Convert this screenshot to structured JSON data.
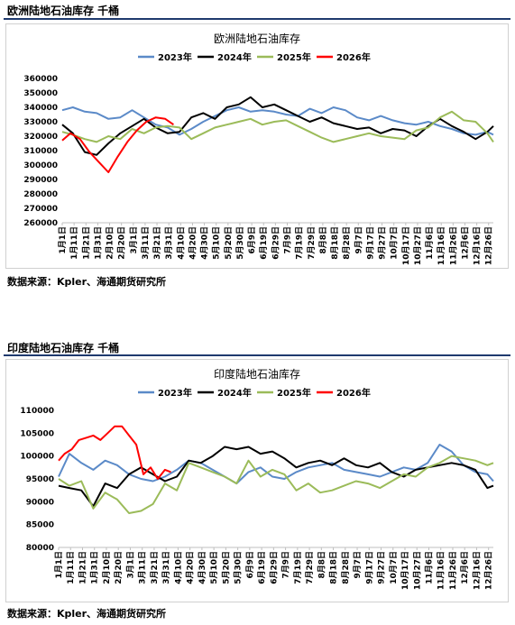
{
  "panels": [
    {
      "heading": "欧洲陆地石油库存  千桶",
      "source": "数据来源：Kpler、海通期货研究所"
    },
    {
      "heading": "印度陆地石油库存  千桶",
      "source": "数据来源：Kpler、海通期货研究所"
    }
  ],
  "chart_data": [
    {
      "type": "line",
      "title": "欧洲陆地石油库存",
      "xlabel": "",
      "ylabel": "",
      "ylim": [
        260000,
        360000
      ],
      "yticks": [
        260000,
        270000,
        280000,
        290000,
        300000,
        310000,
        320000,
        330000,
        340000,
        350000,
        360000
      ],
      "x_tick_labels": [
        "1月1日",
        "1月11日",
        "1月21日",
        "1月31日",
        "2月10日",
        "2月20日",
        "3月1日",
        "3月11日",
        "3月21日",
        "3月31日",
        "4月10日",
        "4月20日",
        "4月30日",
        "5月10日",
        "5月20日",
        "5月30日",
        "6月9日",
        "6月19日",
        "6月29日",
        "7月9日",
        "7月19日",
        "7月29日",
        "8月8日",
        "8月18日",
        "8月28日",
        "9月7日",
        "9月17日",
        "9月27日",
        "10月7日",
        "10月17日",
        "10月27日",
        "11月6日",
        "11月16日",
        "11月26日",
        "12月6日",
        "12月16日",
        "12月26日"
      ],
      "grid": false,
      "legend_position": "top",
      "series": [
        {
          "name": "2023年",
          "color": "#5b8ac8",
          "x": [
            1,
            10,
            20,
            30,
            40,
            50,
            60,
            70,
            80,
            90,
            100,
            110,
            120,
            130,
            140,
            150,
            160,
            170,
            180,
            190,
            200,
            210,
            220,
            230,
            240,
            250,
            260,
            270,
            280,
            290,
            300,
            310,
            320,
            330,
            340,
            350,
            360,
            365
          ],
          "y": [
            338000,
            340000,
            337000,
            336000,
            332000,
            333000,
            338000,
            333000,
            328000,
            326000,
            321000,
            325000,
            330000,
            334000,
            338000,
            340000,
            337000,
            338000,
            337000,
            335000,
            334000,
            339000,
            336000,
            340000,
            338000,
            333000,
            331000,
            334000,
            331000,
            329000,
            328000,
            330000,
            327000,
            325000,
            322000,
            321000,
            323000,
            321000
          ]
        },
        {
          "name": "2024年",
          "color": "#000000",
          "x": [
            1,
            10,
            20,
            30,
            40,
            50,
            60,
            70,
            80,
            90,
            100,
            110,
            120,
            130,
            140,
            150,
            160,
            170,
            180,
            190,
            200,
            210,
            220,
            230,
            240,
            250,
            260,
            270,
            280,
            290,
            300,
            310,
            320,
            330,
            340,
            350,
            360,
            365
          ],
          "y": [
            328000,
            322000,
            309000,
            307000,
            315000,
            322000,
            327000,
            332000,
            326000,
            322000,
            323000,
            333000,
            336000,
            332000,
            340000,
            342000,
            347000,
            340000,
            342000,
            338000,
            334000,
            330000,
            333000,
            329000,
            327000,
            325000,
            326000,
            322000,
            325000,
            324000,
            320000,
            327000,
            332000,
            327000,
            323000,
            318000,
            323000,
            327000
          ]
        },
        {
          "name": "2025年",
          "color": "#9bbb59",
          "x": [
            1,
            10,
            20,
            30,
            40,
            50,
            60,
            70,
            80,
            90,
            100,
            110,
            120,
            130,
            140,
            150,
            160,
            170,
            180,
            190,
            200,
            210,
            220,
            230,
            240,
            250,
            260,
            270,
            280,
            290,
            300,
            310,
            320,
            330,
            340,
            350,
            360,
            365
          ],
          "y": [
            323000,
            321000,
            318000,
            316000,
            320000,
            318000,
            325000,
            322000,
            326000,
            327000,
            326000,
            318000,
            322000,
            326000,
            328000,
            330000,
            332000,
            328000,
            330000,
            331000,
            327000,
            323000,
            319000,
            316000,
            318000,
            320000,
            322000,
            320000,
            319000,
            318000,
            324000,
            326000,
            333000,
            337000,
            331000,
            330000,
            322000,
            316000
          ]
        },
        {
          "name": "2026年",
          "color": "#ff0000",
          "x": [
            1,
            8,
            16,
            24,
            32,
            40,
            48,
            56,
            64,
            72,
            80,
            88,
            95
          ],
          "y": [
            317000,
            322000,
            318000,
            309000,
            302000,
            295000,
            306000,
            316000,
            324000,
            330000,
            333000,
            332000,
            328000
          ]
        }
      ]
    },
    {
      "type": "line",
      "title": "印度陆地石油库存",
      "xlabel": "",
      "ylabel": "",
      "ylim": [
        80000,
        110000
      ],
      "yticks": [
        80000,
        85000,
        90000,
        95000,
        100000,
        105000,
        110000
      ],
      "x_tick_labels": [
        "1月1日",
        "1月11日",
        "1月21日",
        "1月31日",
        "2月10日",
        "2月20日",
        "3月1日",
        "3月11日",
        "3月21日",
        "3月31日",
        "4月10日",
        "4月20日",
        "4月30日",
        "5月10日",
        "5月20日",
        "5月30日",
        "6月9日",
        "6月19日",
        "6月29日",
        "7月9日",
        "7月19日",
        "7月29日",
        "8月8日",
        "8月18日",
        "8月28日",
        "9月7日",
        "9月17日",
        "9月27日",
        "10月7日",
        "10月17日",
        "10月27日",
        "11月6日",
        "11月16日",
        "11月26日",
        "12月6日",
        "12月16日",
        "12月26日"
      ],
      "grid": false,
      "legend_position": "top",
      "series": [
        {
          "name": "2023年",
          "color": "#5b8ac8",
          "x": [
            1,
            10,
            20,
            30,
            40,
            50,
            60,
            70,
            80,
            90,
            100,
            110,
            120,
            130,
            140,
            150,
            160,
            170,
            180,
            190,
            200,
            210,
            220,
            230,
            240,
            250,
            260,
            270,
            280,
            290,
            300,
            310,
            320,
            330,
            340,
            350,
            360,
            365
          ],
          "y": [
            95500,
            100500,
            98500,
            97000,
            99000,
            98000,
            96000,
            95000,
            94500,
            95500,
            97000,
            99000,
            98500,
            97000,
            95500,
            94000,
            96500,
            97500,
            95500,
            95000,
            96500,
            97500,
            98000,
            98500,
            97000,
            96500,
            96000,
            95500,
            96500,
            97500,
            97000,
            98500,
            102500,
            101000,
            98000,
            96500,
            96000,
            94500
          ]
        },
        {
          "name": "2024年",
          "color": "#000000",
          "x": [
            1,
            10,
            20,
            30,
            40,
            50,
            60,
            70,
            80,
            90,
            100,
            110,
            120,
            130,
            140,
            150,
            160,
            170,
            180,
            190,
            200,
            210,
            220,
            230,
            240,
            250,
            260,
            270,
            280,
            290,
            300,
            310,
            320,
            330,
            340,
            350,
            360,
            365
          ],
          "y": [
            93500,
            93000,
            92500,
            89000,
            94000,
            93000,
            96000,
            97500,
            96000,
            94500,
            95500,
            99000,
            98500,
            100000,
            102000,
            101500,
            102000,
            100500,
            101000,
            99500,
            97500,
            98500,
            99000,
            98000,
            99500,
            98000,
            97500,
            98500,
            96500,
            95500,
            97000,
            97500,
            98000,
            98500,
            98000,
            97000,
            93000,
            93500
          ]
        },
        {
          "name": "2025年",
          "color": "#9bbb59",
          "x": [
            1,
            10,
            20,
            30,
            40,
            50,
            60,
            70,
            80,
            90,
            100,
            110,
            120,
            130,
            140,
            150,
            160,
            170,
            180,
            190,
            200,
            210,
            220,
            230,
            240,
            250,
            260,
            270,
            280,
            290,
            300,
            310,
            320,
            330,
            340,
            350,
            360,
            365
          ],
          "y": [
            95000,
            93500,
            94500,
            88500,
            92000,
            90500,
            87500,
            88000,
            89500,
            94000,
            92500,
            98500,
            97500,
            96500,
            95500,
            94000,
            99000,
            95500,
            97000,
            96000,
            92500,
            94000,
            92000,
            92500,
            93500,
            94500,
            94000,
            93000,
            94500,
            96000,
            95500,
            97500,
            98500,
            100000,
            99500,
            99000,
            98000,
            98500
          ]
        },
        {
          "name": "2026年",
          "color": "#ff0000",
          "x": [
            1,
            6,
            12,
            18,
            24,
            30,
            36,
            42,
            48,
            54,
            60,
            66,
            72,
            78,
            84,
            90,
            95
          ],
          "y": [
            99000,
            100500,
            101500,
            103500,
            104000,
            104500,
            103500,
            105000,
            106500,
            106500,
            104500,
            102500,
            96000,
            97500,
            95000,
            97000,
            96500
          ]
        }
      ]
    }
  ]
}
